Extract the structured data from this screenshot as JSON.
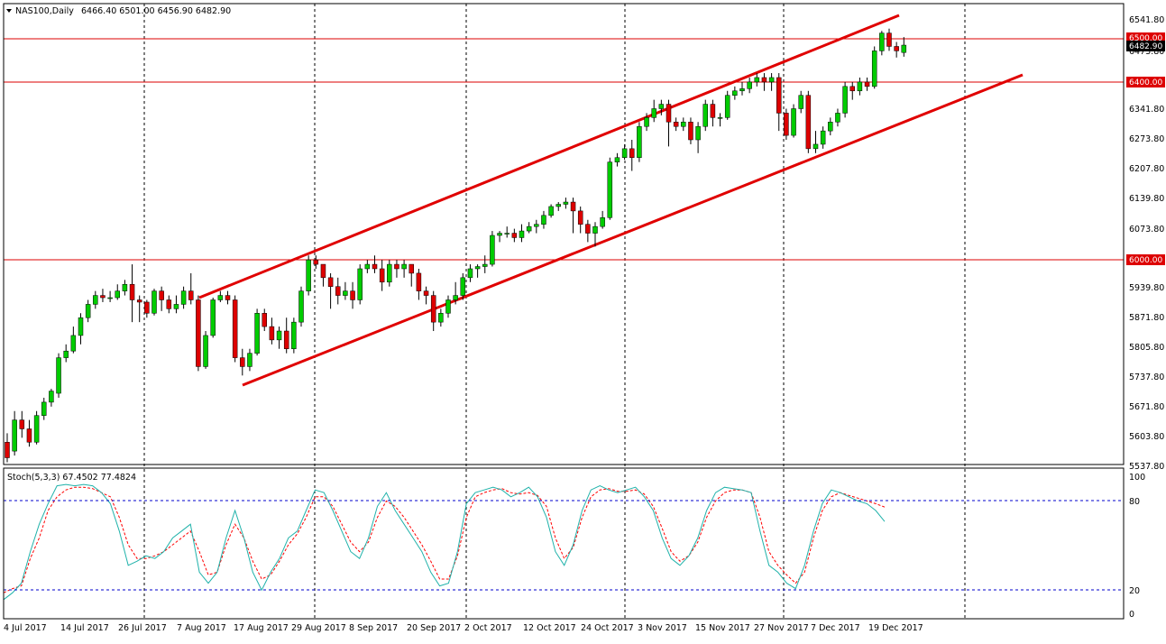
{
  "header": {
    "symbol": "NAS100,Daily",
    "ohlc": "6466.40 6501.00 6456.90 6482.90"
  },
  "indicator": {
    "label": "Stoch(5,3,3) 67.4502 77.4824",
    "levels": [
      "100",
      "80",
      "20",
      "0"
    ]
  },
  "price_axis": {
    "ticks": [
      "6541.80",
      "6473.80",
      "6341.80",
      "6273.80",
      "6207.80",
      "6139.80",
      "6073.80",
      "5939.80",
      "5871.80",
      "5805.80",
      "5737.80",
      "5671.80",
      "5603.80",
      "5537.80"
    ]
  },
  "price_labels": {
    "level_6500": "6500.00",
    "current": "6482.90",
    "level_6400": "6400.00",
    "level_6000": "6000.00"
  },
  "time_axis": {
    "labels": [
      "4 Jul 2017",
      "14 Jul 2017",
      "26 Jul 2017",
      "7 Aug 2017",
      "17 Aug 2017",
      "29 Aug 2017",
      "8 Sep 2017",
      "20 Sep 2017",
      "2 Oct 2017",
      "12 Oct 2017",
      "24 Oct 2017",
      "3 Nov 2017",
      "15 Nov 2017",
      "27 Nov 2017",
      "7 Dec 2017",
      "19 Dec 2017"
    ]
  },
  "colors": {
    "bull": "#00cc00",
    "bear": "#dd0000",
    "stoch_main": "#20b2aa",
    "stoch_signal": "#ff0000",
    "levels": "#0000cc"
  },
  "chart_data": {
    "type": "candlestick",
    "ylim": [
      5537.8,
      6541.8
    ],
    "candles": [
      [
        5590,
        5555,
        5610,
        5545
      ],
      [
        5570,
        5640,
        5660,
        5560
      ],
      [
        5640,
        5620,
        5660,
        5600
      ],
      [
        5620,
        5590,
        5640,
        5580
      ],
      [
        5590,
        5650,
        5660,
        5585
      ],
      [
        5650,
        5680,
        5690,
        5640
      ],
      [
        5680,
        5705,
        5710,
        5670
      ],
      [
        5700,
        5780,
        5790,
        5690
      ],
      [
        5780,
        5795,
        5810,
        5770
      ],
      [
        5795,
        5830,
        5850,
        5790
      ],
      [
        5830,
        5870,
        5880,
        5810
      ],
      [
        5870,
        5900,
        5910,
        5860
      ],
      [
        5900,
        5920,
        5930,
        5890
      ],
      [
        5920,
        5915,
        5935,
        5905
      ],
      [
        5915,
        5915,
        5930,
        5905
      ],
      [
        5915,
        5930,
        5945,
        5910
      ],
      [
        5930,
        5945,
        5955,
        5920
      ],
      [
        5945,
        5910,
        5990,
        5860
      ],
      [
        5910,
        5905,
        5920,
        5860
      ],
      [
        5905,
        5880,
        5910,
        5870
      ],
      [
        5880,
        5930,
        5935,
        5875
      ],
      [
        5930,
        5910,
        5940,
        5885
      ],
      [
        5910,
        5890,
        5920,
        5880
      ],
      [
        5890,
        5900,
        5920,
        5880
      ],
      [
        5900,
        5930,
        5940,
        5890
      ],
      [
        5930,
        5910,
        5970,
        5900
      ],
      [
        5910,
        5760,
        5920,
        5750
      ],
      [
        5760,
        5830,
        5840,
        5755
      ],
      [
        5830,
        5910,
        5915,
        5825
      ],
      [
        5910,
        5920,
        5930,
        5905
      ],
      [
        5920,
        5910,
        5930,
        5900
      ],
      [
        5910,
        5780,
        5920,
        5770
      ],
      [
        5780,
        5760,
        5800,
        5740
      ],
      [
        5760,
        5790,
        5800,
        5750
      ],
      [
        5790,
        5880,
        5890,
        5785
      ],
      [
        5880,
        5850,
        5890,
        5840
      ],
      [
        5850,
        5820,
        5870,
        5810
      ],
      [
        5820,
        5840,
        5850,
        5800
      ],
      [
        5840,
        5800,
        5870,
        5790
      ],
      [
        5800,
        5860,
        5870,
        5790
      ],
      [
        5860,
        5930,
        5940,
        5850
      ],
      [
        5930,
        6000,
        6010,
        5920
      ],
      [
        6000,
        5990,
        6010,
        5980
      ],
      [
        5990,
        5960,
        5990,
        5940
      ],
      [
        5960,
        5940,
        5970,
        5890
      ],
      [
        5940,
        5920,
        5960,
        5900
      ],
      [
        5920,
        5930,
        5950,
        5910
      ],
      [
        5930,
        5910,
        5950,
        5890
      ],
      [
        5910,
        5980,
        5990,
        5900
      ],
      [
        5980,
        5990,
        6000,
        5970
      ],
      [
        5990,
        5980,
        6010,
        5970
      ],
      [
        5980,
        5950,
        6000,
        5930
      ],
      [
        5950,
        5990,
        6000,
        5940
      ],
      [
        5990,
        5980,
        6000,
        5960
      ],
      [
        5980,
        5990,
        6000,
        5960
      ],
      [
        5990,
        5970,
        5990,
        5940
      ],
      [
        5970,
        5930,
        5980,
        5910
      ],
      [
        5930,
        5920,
        5940,
        5900
      ],
      [
        5920,
        5860,
        5930,
        5840
      ],
      [
        5860,
        5880,
        5890,
        5850
      ],
      [
        5880,
        5910,
        5920,
        5870
      ],
      [
        5910,
        5920,
        5950,
        5900
      ],
      [
        5920,
        5960,
        5970,
        5910
      ],
      [
        5960,
        5980,
        5990,
        5950
      ],
      [
        5980,
        5985,
        5990,
        5960
      ],
      [
        5985,
        5990,
        6010,
        5970
      ],
      [
        5990,
        6055,
        6065,
        5985
      ],
      [
        6055,
        6060,
        6065,
        6040
      ],
      [
        6060,
        6060,
        6075,
        6050
      ],
      [
        6060,
        6050,
        6070,
        6040
      ],
      [
        6050,
        6065,
        6080,
        6040
      ],
      [
        6065,
        6075,
        6085,
        6060
      ],
      [
        6075,
        6080,
        6090,
        6060
      ],
      [
        6080,
        6100,
        6110,
        6070
      ],
      [
        6100,
        6120,
        6125,
        6095
      ],
      [
        6120,
        6125,
        6130,
        6110
      ],
      [
        6125,
        6130,
        6140,
        6115
      ],
      [
        6130,
        6110,
        6140,
        6060
      ],
      [
        6110,
        6080,
        6120,
        6060
      ],
      [
        6080,
        6060,
        6090,
        6040
      ],
      [
        6060,
        6075,
        6085,
        6030
      ],
      [
        6075,
        6095,
        6110,
        6070
      ],
      [
        6095,
        6220,
        6230,
        6090
      ],
      [
        6220,
        6230,
        6240,
        6210
      ],
      [
        6230,
        6250,
        6260,
        6225
      ],
      [
        6250,
        6230,
        6270,
        6200
      ],
      [
        6230,
        6300,
        6310,
        6220
      ],
      [
        6300,
        6320,
        6330,
        6290
      ],
      [
        6320,
        6340,
        6360,
        6310
      ],
      [
        6340,
        6350,
        6360,
        6325
      ],
      [
        6350,
        6310,
        6360,
        6255
      ],
      [
        6310,
        6300,
        6320,
        6290
      ],
      [
        6300,
        6310,
        6320,
        6290
      ],
      [
        6310,
        6270,
        6320,
        6260
      ],
      [
        6270,
        6300,
        6310,
        6240
      ],
      [
        6300,
        6350,
        6360,
        6290
      ],
      [
        6350,
        6320,
        6360,
        6300
      ],
      [
        6320,
        6320,
        6330,
        6300
      ],
      [
        6320,
        6370,
        6380,
        6315
      ],
      [
        6370,
        6380,
        6390,
        6360
      ],
      [
        6380,
        6385,
        6400,
        6370
      ],
      [
        6385,
        6400,
        6410,
        6375
      ],
      [
        6400,
        6410,
        6420,
        6390
      ],
      [
        6410,
        6400,
        6420,
        6380
      ],
      [
        6400,
        6410,
        6420,
        6380
      ],
      [
        6410,
        6330,
        6420,
        6290
      ],
      [
        6330,
        6280,
        6340,
        6270
      ],
      [
        6280,
        6340,
        6350,
        6275
      ],
      [
        6340,
        6370,
        6380,
        6330
      ],
      [
        6370,
        6250,
        6380,
        6240
      ],
      [
        6250,
        6260,
        6290,
        6240
      ],
      [
        6260,
        6290,
        6300,
        6250
      ],
      [
        6290,
        6310,
        6320,
        6280
      ],
      [
        6310,
        6330,
        6340,
        6300
      ],
      [
        6330,
        6390,
        6400,
        6320
      ],
      [
        6390,
        6380,
        6400,
        6360
      ],
      [
        6380,
        6400,
        6410,
        6370
      ],
      [
        6400,
        6390,
        6410,
        6380
      ],
      [
        6390,
        6470,
        6480,
        6385
      ],
      [
        6470,
        6510,
        6515,
        6460
      ],
      [
        6510,
        6480,
        6520,
        6470
      ],
      [
        6480,
        6470,
        6490,
        6455
      ],
      [
        6466.4,
        6482.9,
        6501.0,
        6456.9
      ]
    ],
    "stoch_main": [
      10,
      15,
      22,
      45,
      65,
      80,
      93,
      94,
      93,
      94,
      93,
      88,
      80,
      60,
      35,
      38,
      42,
      40,
      45,
      55,
      60,
      65,
      30,
      22,
      30,
      55,
      75,
      55,
      30,
      17,
      30,
      40,
      55,
      60,
      75,
      90,
      88,
      75,
      60,
      45,
      40,
      55,
      78,
      88,
      75,
      65,
      55,
      45,
      30,
      20,
      22,
      45,
      80,
      88,
      90,
      92,
      90,
      85,
      88,
      92,
      85,
      70,
      45,
      35,
      50,
      75,
      90,
      93,
      90,
      88,
      90,
      92,
      85,
      75,
      55,
      40,
      35,
      42,
      55,
      75,
      88,
      92,
      91,
      90,
      88,
      60,
      35,
      30,
      22,
      18,
      35,
      60,
      80,
      90,
      88,
      85,
      82,
      80,
      75,
      67
    ],
    "stoch_signal": [
      15,
      18,
      20,
      40,
      55,
      75,
      85,
      90,
      92,
      92,
      91,
      88,
      85,
      70,
      50,
      40,
      40,
      42,
      45,
      50,
      55,
      60,
      45,
      28,
      30,
      50,
      65,
      55,
      38,
      25,
      28,
      38,
      50,
      58,
      70,
      85,
      85,
      78,
      65,
      52,
      45,
      52,
      70,
      82,
      78,
      70,
      60,
      50,
      38,
      25,
      25,
      42,
      70,
      85,
      88,
      90,
      91,
      88,
      87,
      88,
      86,
      78,
      55,
      40,
      48,
      70,
      85,
      90,
      91,
      89,
      89,
      90,
      87,
      78,
      62,
      45,
      38,
      42,
      52,
      70,
      82,
      88,
      90,
      90,
      88,
      70,
      45,
      35,
      28,
      22,
      30,
      55,
      75,
      85,
      88,
      86,
      84,
      82,
      80,
      77.5
    ]
  }
}
